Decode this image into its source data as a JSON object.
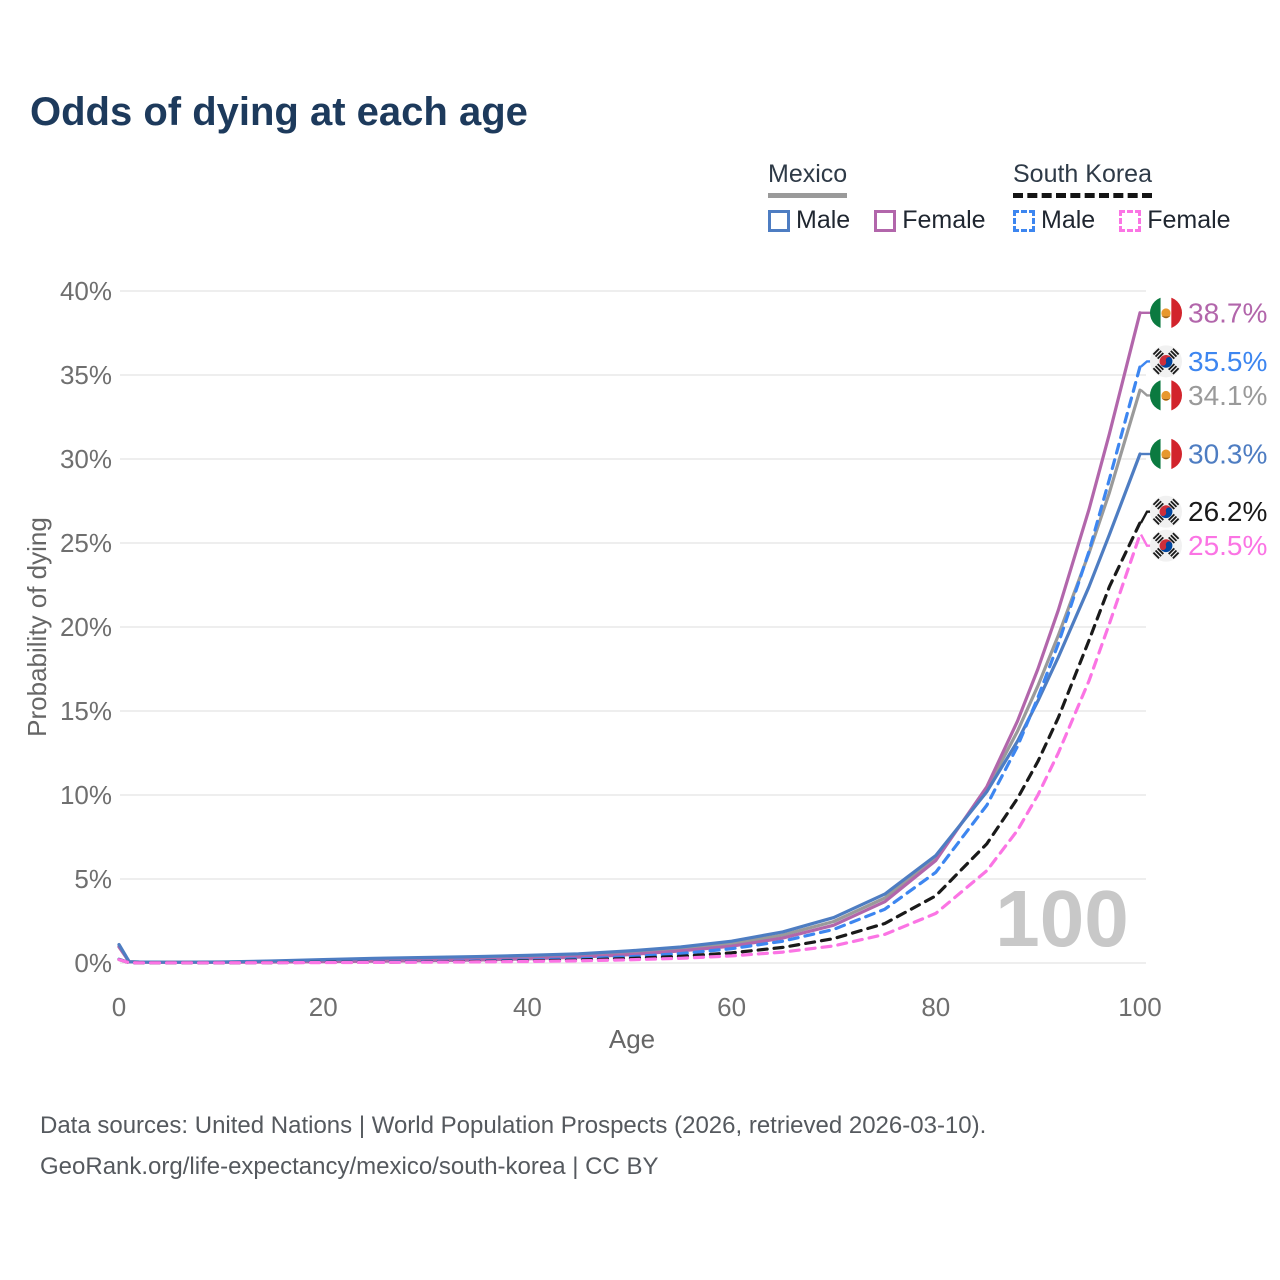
{
  "header": {
    "title": "Odds of dying at each age"
  },
  "legend": {
    "groups": [
      {
        "id": "mexico",
        "label": "Mexico",
        "line_style": "solid",
        "underline_color": "#9a9a9a",
        "items": [
          {
            "label": "Male",
            "color": "#4e7dc2",
            "dashed": false
          },
          {
            "label": "Female",
            "color": "#b266ab",
            "dashed": false
          }
        ]
      },
      {
        "id": "south-korea",
        "label": "South Korea",
        "line_style": "dashed",
        "underline_color": "#141414",
        "items": [
          {
            "label": "Male",
            "color": "#3d86f0",
            "dashed": true
          },
          {
            "label": "Female",
            "color": "#fb74e4",
            "dashed": true
          }
        ]
      }
    ]
  },
  "chart_data": {
    "type": "line",
    "title": "Odds of dying at each age",
    "xlabel": "Age",
    "ylabel": "Probability of dying",
    "xlim": [
      0,
      100
    ],
    "ylim": [
      0,
      40
    ],
    "x_ticks": [
      0,
      20,
      40,
      60,
      80,
      100
    ],
    "y_ticks_percent": [
      0,
      5,
      10,
      15,
      20,
      25,
      30,
      35,
      40
    ],
    "grid": "horizontal",
    "legend_position": "top-right",
    "watermark": "100",
    "ages": [
      0,
      1,
      2,
      5,
      10,
      15,
      20,
      25,
      30,
      35,
      40,
      45,
      50,
      55,
      60,
      65,
      70,
      75,
      80,
      85,
      88,
      90,
      92,
      95,
      97,
      100
    ],
    "series": [
      {
        "name": "Mexico Total",
        "country": "mexico",
        "color": "#9a9a9a",
        "dashed": false,
        "end_value": 34.1,
        "end_label": "34.1%",
        "values": [
          1.0,
          0.075,
          0.055,
          0.045,
          0.05,
          0.09,
          0.14,
          0.19,
          0.23,
          0.28,
          0.35,
          0.45,
          0.61,
          0.83,
          1.15,
          1.66,
          2.47,
          3.87,
          6.25,
          10.35,
          13.8,
          16.5,
          19.5,
          24.4,
          28.0,
          34.1
        ]
      },
      {
        "name": "Mexico Female",
        "country": "mexico",
        "color": "#b266ab",
        "dashed": false,
        "end_value": 38.7,
        "end_label": "38.7%",
        "values": [
          0.95,
          0.07,
          0.05,
          0.04,
          0.04,
          0.06,
          0.08,
          0.11,
          0.14,
          0.18,
          0.25,
          0.35,
          0.5,
          0.72,
          1.0,
          1.48,
          2.25,
          3.65,
          6.1,
          10.5,
          14.4,
          17.5,
          21.0,
          27.0,
          31.5,
          38.7
        ]
      },
      {
        "name": "Mexico Male",
        "country": "mexico",
        "color": "#4e7dc2",
        "dashed": false,
        "end_value": 30.3,
        "end_label": "30.3%",
        "values": [
          1.1,
          0.08,
          0.06,
          0.05,
          0.06,
          0.12,
          0.2,
          0.28,
          0.33,
          0.38,
          0.45,
          0.55,
          0.72,
          0.95,
          1.3,
          1.85,
          2.7,
          4.1,
          6.4,
          10.2,
          13.2,
          15.6,
          18.2,
          22.4,
          25.5,
          30.3
        ]
      },
      {
        "name": "South Korea Male",
        "country": "south-korea",
        "color": "#3d86f0",
        "dashed": true,
        "end_value": 35.5,
        "end_label": "35.5%",
        "values": [
          0.22,
          0.02,
          0.015,
          0.01,
          0.012,
          0.03,
          0.05,
          0.07,
          0.09,
          0.12,
          0.17,
          0.25,
          0.37,
          0.56,
          0.85,
          1.3,
          2.0,
          3.2,
          5.4,
          9.4,
          12.9,
          15.8,
          19.0,
          24.5,
          28.8,
          35.5
        ]
      },
      {
        "name": "South Korea Total",
        "country": "south-korea",
        "color": "#1a1a1a",
        "dashed": true,
        "end_value": 26.2,
        "end_label": "26.2%",
        "values": [
          0.21,
          0.02,
          0.014,
          0.01,
          0.011,
          0.025,
          0.04,
          0.05,
          0.065,
          0.09,
          0.125,
          0.18,
          0.27,
          0.4,
          0.6,
          0.93,
          1.45,
          2.35,
          4.0,
          7.1,
          9.8,
          12.0,
          14.6,
          19.2,
          22.4,
          26.2
        ]
      },
      {
        "name": "South Korea Female",
        "country": "south-korea",
        "color": "#fb74e4",
        "dashed": true,
        "end_value": 25.5,
        "end_label": "25.5%",
        "values": [
          0.2,
          0.018,
          0.013,
          0.009,
          0.01,
          0.02,
          0.025,
          0.035,
          0.05,
          0.065,
          0.09,
          0.13,
          0.19,
          0.28,
          0.42,
          0.65,
          1.02,
          1.7,
          2.95,
          5.5,
          7.9,
          10.0,
          12.5,
          16.8,
          20.2,
          25.5
        ]
      }
    ]
  },
  "footer": {
    "line1": "Data sources: United Nations | World Population Prospects (2026, retrieved 2026-03-10).",
    "line2": "GeoRank.org/life-expectancy/mexico/south-korea | CC BY"
  }
}
